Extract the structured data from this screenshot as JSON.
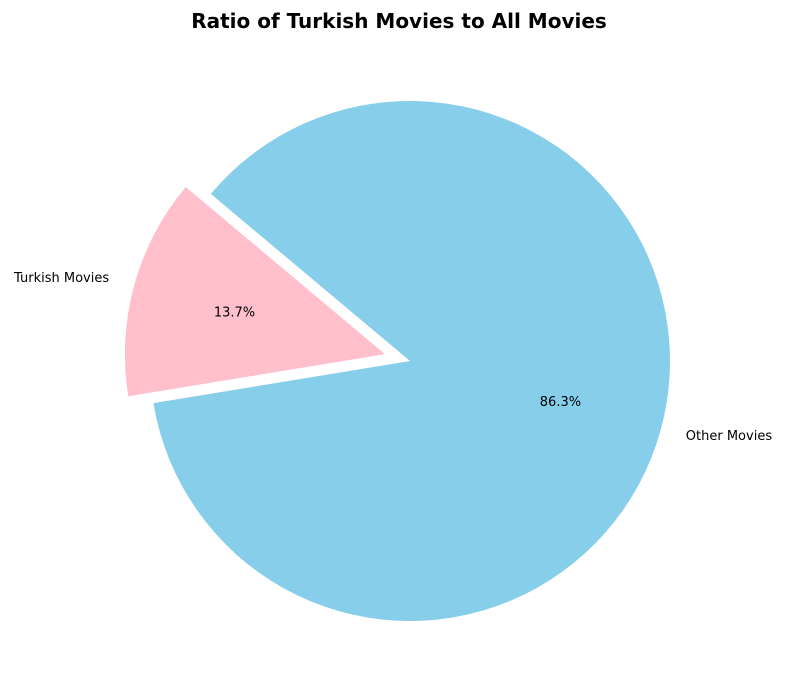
{
  "chart_data": {
    "type": "pie",
    "title": "Ratio of Turkish Movies to All Movies",
    "slices": [
      {
        "label": "Turkish Movies",
        "value": 13.7,
        "pct_label": "13.7%",
        "color": "#FFC0CB",
        "exploded": true
      },
      {
        "label": "Other Movies",
        "value": 86.3,
        "pct_label": "86.3%",
        "color": "#87CEEB",
        "exploded": false
      }
    ],
    "start_angle_deg": 140,
    "legend": "none"
  }
}
